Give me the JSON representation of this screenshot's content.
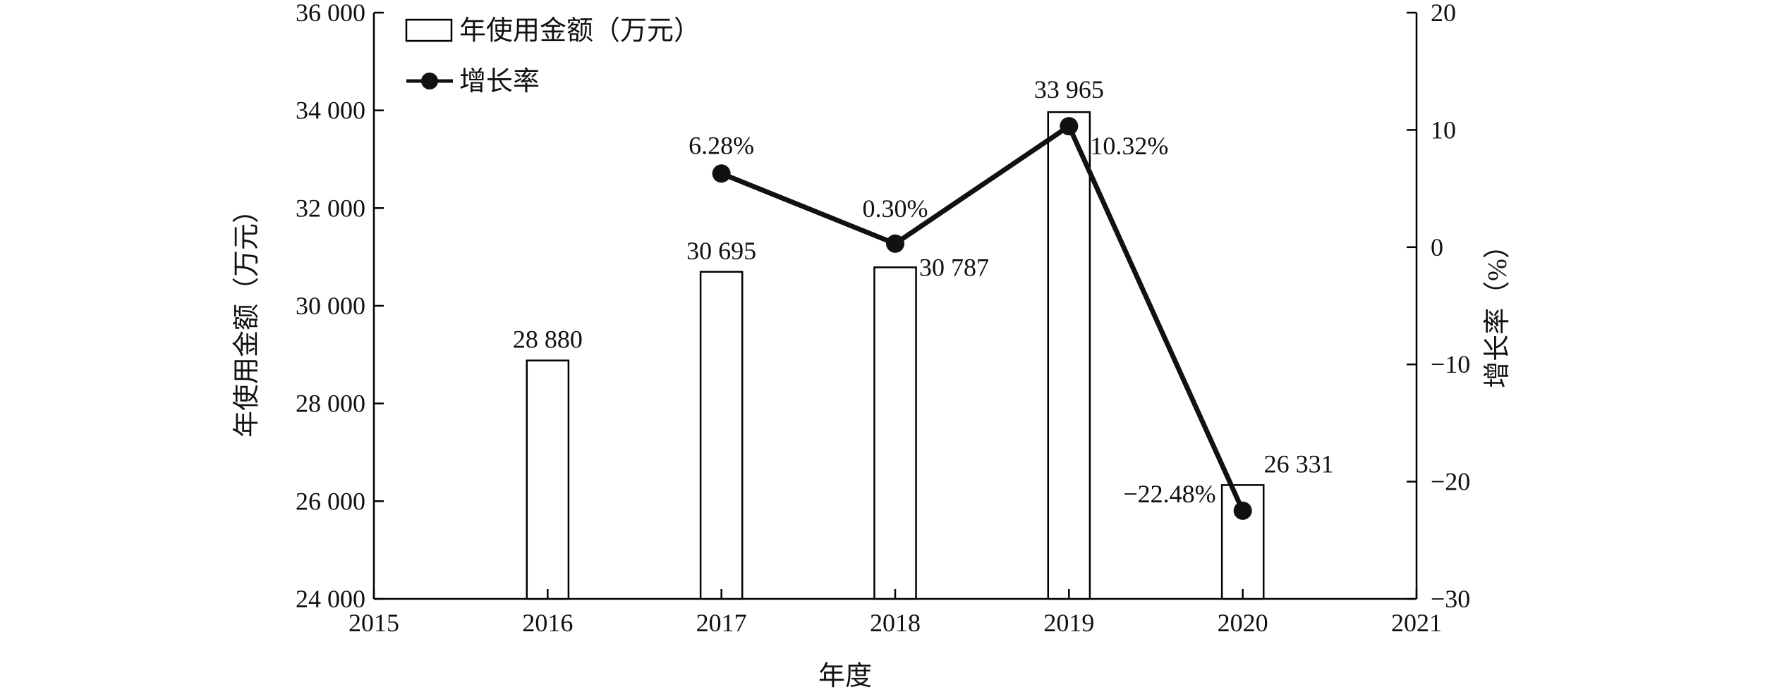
{
  "chart_data": {
    "type": "bar+line",
    "x": [
      2016,
      2017,
      2018,
      2019,
      2020
    ],
    "xlim": [
      2015,
      2021
    ],
    "xticks": [
      "2015",
      "2016",
      "2017",
      "2018",
      "2019",
      "2020",
      "2021"
    ],
    "xlabel": "年度",
    "ylabel_left": "年使用金额（万元）",
    "ylabel_right": "增长率（%）",
    "ylim_left": [
      24000,
      36000
    ],
    "ylim_right": [
      -30,
      20
    ],
    "yticks_left": [
      "24 000",
      "26 000",
      "28 000",
      "30 000",
      "32 000",
      "34 000",
      "36 000"
    ],
    "yticks_right": [
      "−30",
      "−20",
      "−10",
      "0",
      "10",
      "20"
    ],
    "series": [
      {
        "name": "年使用金额（万元）",
        "kind": "bar",
        "axis": "left",
        "x": [
          2016,
          2017,
          2018,
          2019,
          2020
        ],
        "values": [
          28880,
          30695,
          30787,
          33965,
          26331
        ],
        "labels": [
          "28 880",
          "30 695",
          "30 787",
          "33 965",
          "26 331"
        ]
      },
      {
        "name": "增长率",
        "kind": "line",
        "axis": "right",
        "x": [
          2017,
          2018,
          2019,
          2020
        ],
        "values": [
          6.28,
          0.3,
          10.32,
          -22.48
        ],
        "labels": [
          "6.28%",
          "0.30%",
          "10.32%",
          "−22.48%"
        ]
      }
    ],
    "legend_position": "top-left",
    "grid": false,
    "colors": {
      "bar_fill": "#ffffff",
      "bar_stroke": "#000000",
      "line": "#111111"
    }
  }
}
